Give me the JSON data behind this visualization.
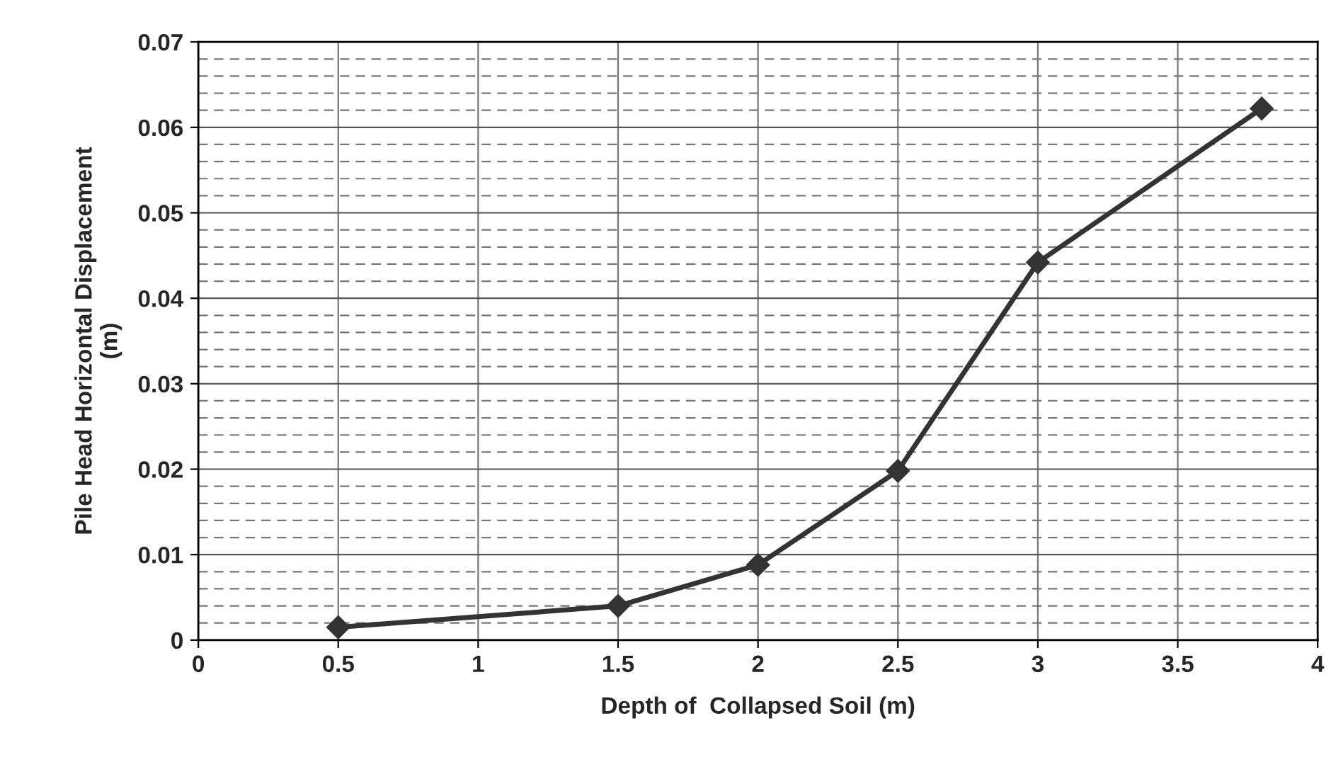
{
  "chart_data": {
    "type": "line",
    "xlabel": "Depth of  Collapsed Soil (m)",
    "ylabel": "Pile Head Horizontal Displacement\n(m)",
    "x": [
      0.5,
      1.5,
      2,
      2.5,
      3,
      3.8
    ],
    "series": [
      {
        "color": "#333333",
        "values": [
          0.0015,
          0.004,
          0.0088,
          0.0198,
          0.0442,
          0.0622
        ]
      }
    ],
    "xlim": [
      0,
      4
    ],
    "xticks": [
      0,
      0.5,
      1,
      1.5,
      2,
      2.5,
      3,
      3.5,
      4
    ],
    "ylim": [
      0,
      0.07
    ],
    "yticks": [
      0,
      0.01,
      0.02,
      0.03,
      0.04,
      0.05,
      0.06,
      0.07
    ],
    "grid": true,
    "marker": "diamond",
    "line_style": "solid"
  }
}
